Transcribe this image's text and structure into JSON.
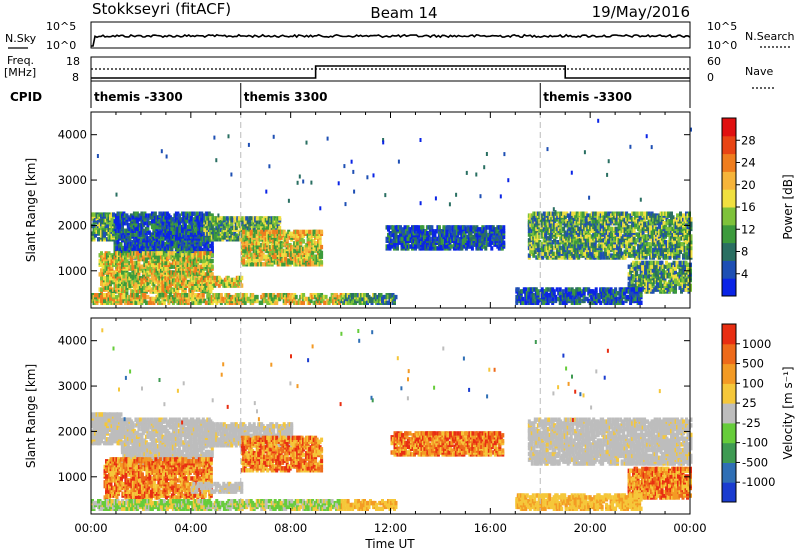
{
  "header": {
    "radar": "Stokkseyri (fitACF)",
    "beam": "Beam 14",
    "date": "19/May/2016"
  },
  "noise_panel": {
    "left_label": "N.Sky",
    "right_label": "N.Search",
    "left_ticks": [
      "10^5",
      "10^0"
    ],
    "right_ticks": [
      "10^5",
      "10^0"
    ]
  },
  "freq_panel": {
    "left_label_1": "Freq.",
    "left_label_2": "[MHz]",
    "right_label": "Nave",
    "left_ticks": [
      "18",
      "8"
    ],
    "right_ticks": [
      "60",
      "0"
    ],
    "nave_step_times_hours": [
      0,
      9,
      19,
      24
    ],
    "nave_values": [
      0,
      60,
      0
    ]
  },
  "cpid": {
    "label": "CPID",
    "segments": [
      {
        "name": "themis -3300",
        "start_hour": 0
      },
      {
        "name": "themis 3300",
        "start_hour": 6
      },
      {
        "name": "themis -3300",
        "start_hour": 18
      }
    ]
  },
  "chart_data": [
    {
      "type": "heatmap",
      "parameter": "Power",
      "ylabel": "Slant Range [km]",
      "xlabel": "",
      "xlim_hours": [
        0,
        24
      ],
      "ylim": [
        180,
        4500
      ],
      "yticks": [
        1000,
        2000,
        3000,
        4000
      ],
      "colorbar": {
        "label": "Power [dB]",
        "ticks": [
          "4",
          "8",
          "12",
          "16",
          "20",
          "24",
          "28"
        ],
        "colors": [
          "#0a24e6",
          "#1e4fb4",
          "#2a6f62",
          "#3c9a3c",
          "#7ec23a",
          "#f0e040",
          "#f6b43a",
          "#ef7d1e",
          "#e84414",
          "#e01010"
        ]
      },
      "echo_regions": [
        {
          "t": [
            0.0,
            0.9
          ],
          "r": [
            1700,
            2250
          ],
          "level": "mid"
        },
        {
          "t": [
            0.9,
            4.8
          ],
          "r": [
            1300,
            2300
          ],
          "level": "low"
        },
        {
          "t": [
            0.3,
            4.8
          ],
          "r": [
            550,
            1400
          ],
          "level": "high"
        },
        {
          "t": [
            0.0,
            10.0
          ],
          "r": [
            300,
            500
          ],
          "level": "high"
        },
        {
          "t": [
            4.0,
            6.0
          ],
          "r": [
            680,
            850
          ],
          "level": "high"
        },
        {
          "t": [
            4.5,
            7.5
          ],
          "r": [
            1700,
            2200
          ],
          "level": "mid"
        },
        {
          "t": [
            6.0,
            9.2
          ],
          "r": [
            1150,
            1900
          ],
          "level": "high"
        },
        {
          "t": [
            10.0,
            12.2
          ],
          "r": [
            300,
            480
          ],
          "level": "mid"
        },
        {
          "t": [
            11.8,
            16.5
          ],
          "r": [
            1500,
            2000
          ],
          "level": "low"
        },
        {
          "t": [
            17.5,
            24.0
          ],
          "r": [
            1300,
            2300
          ],
          "level": "mid"
        },
        {
          "t": [
            21.5,
            24.0
          ],
          "r": [
            550,
            1200
          ],
          "level": "mid"
        },
        {
          "t": [
            17.0,
            22.0
          ],
          "r": [
            300,
            600
          ],
          "level": "low"
        }
      ]
    },
    {
      "type": "heatmap",
      "parameter": "Velocity",
      "ylabel": "Slant Range [km]",
      "xlabel": "Time UT",
      "xlim_hours": [
        0,
        24
      ],
      "ylim": [
        180,
        4500
      ],
      "yticks": [
        1000,
        2000,
        3000,
        4000
      ],
      "xticks": [
        "00:00",
        "04:00",
        "08:00",
        "12:00",
        "16:00",
        "20:00",
        "00:00"
      ],
      "colorbar": {
        "label": "Velocity [m s⁻¹]",
        "ticks": [
          "1000",
          "500",
          "100",
          "25",
          "-25",
          "-100",
          "-500",
          "-1000"
        ],
        "colors": [
          "#1a3cd0",
          "#2f6fb5",
          "#3e9a52",
          "#66cc3a",
          "#bdbdbd",
          "#f5c73a",
          "#f39a24",
          "#ee6a1a",
          "#e82e12"
        ]
      },
      "echo_regions": [
        {
          "t": [
            0.0,
            1.2
          ],
          "r": [
            1750,
            2400
          ],
          "level": "ground"
        },
        {
          "t": [
            1.2,
            4.8
          ],
          "r": [
            1300,
            2300
          ],
          "level": "ground"
        },
        {
          "t": [
            0.5,
            4.8
          ],
          "r": [
            550,
            1400
          ],
          "level": "neg"
        },
        {
          "t": [
            0.0,
            10.0
          ],
          "r": [
            300,
            500
          ],
          "level": "pos"
        },
        {
          "t": [
            4.0,
            6.0
          ],
          "r": [
            680,
            850
          ],
          "level": "ground"
        },
        {
          "t": [
            4.5,
            8.0
          ],
          "r": [
            1700,
            2200
          ],
          "level": "ground"
        },
        {
          "t": [
            6.0,
            9.2
          ],
          "r": [
            1150,
            1900
          ],
          "level": "neg"
        },
        {
          "t": [
            10.0,
            12.2
          ],
          "r": [
            300,
            480
          ],
          "level": "negsmall"
        },
        {
          "t": [
            12.0,
            16.5
          ],
          "r": [
            1500,
            2000
          ],
          "level": "neg"
        },
        {
          "t": [
            17.5,
            24.0
          ],
          "r": [
            1300,
            2300
          ],
          "level": "ground"
        },
        {
          "t": [
            21.5,
            24.0
          ],
          "r": [
            550,
            1200
          ],
          "level": "neg"
        },
        {
          "t": [
            17.0,
            22.0
          ],
          "r": [
            300,
            600
          ],
          "level": "negsmall"
        }
      ]
    }
  ]
}
